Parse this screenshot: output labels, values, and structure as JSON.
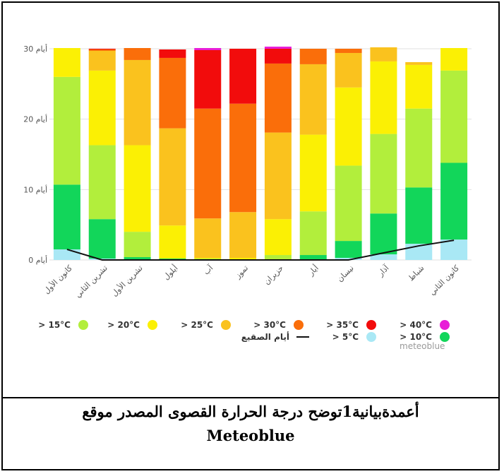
{
  "chart_data": {
    "type": "bar",
    "stacked": true,
    "source_label": "meteoblue",
    "ylim": [
      0,
      30
    ],
    "y_ticks": [
      0,
      10,
      20,
      30
    ],
    "y_tick_labels": [
      "0 أيام",
      "10 أيام",
      "20 أيام",
      "30 أيام"
    ],
    "categories": [
      "كانون الأول",
      "تشرين الثاني",
      "تشرين الأول",
      "أيلول",
      "آب",
      "تموز",
      "حزيران",
      "أيار",
      "نيسان",
      "آذار",
      "شباط",
      "كانون الثاني"
    ],
    "series": [
      {
        "name": "> 5°C",
        "color": "#a9e8f5",
        "values": [
          1.5,
          0.2,
          0.1,
          0.0,
          0.0,
          0.0,
          0.0,
          0.0,
          0.3,
          0.8,
          2.3,
          2.9
        ]
      },
      {
        "name": "> 10°C",
        "color": "#12d65a",
        "values": [
          9.2,
          5.6,
          0.3,
          0.2,
          0.1,
          0.0,
          0.0,
          0.7,
          2.4,
          5.8,
          8.0,
          10.9
        ]
      },
      {
        "name": "> 15°C",
        "color": "#b2ee3c",
        "values": [
          15.3,
          10.5,
          3.6,
          0.0,
          0.1,
          0.1,
          0.7,
          6.2,
          10.7,
          11.3,
          11.2,
          13.1
        ]
      },
      {
        "name": "> 20°C",
        "color": "#fbf004",
        "values": [
          4.1,
          10.6,
          12.3,
          4.7,
          0.1,
          0.2,
          5.1,
          10.9,
          11.1,
          10.3,
          6.2,
          3.2
        ]
      },
      {
        "name": "> 25°C",
        "color": "#fac21e",
        "values": [
          0.0,
          2.8,
          12.1,
          13.8,
          5.6,
          6.5,
          12.3,
          10.0,
          4.9,
          2.0,
          0.4,
          0.0
        ]
      },
      {
        "name": "> 30°C",
        "color": "#fa6e0a",
        "values": [
          0.0,
          0.2,
          1.7,
          10.0,
          15.6,
          15.4,
          9.8,
          2.2,
          0.6,
          0.0,
          0.0,
          0.0
        ]
      },
      {
        "name": "> 35°C",
        "color": "#f20c0c",
        "values": [
          0.0,
          0.1,
          0.0,
          1.2,
          8.3,
          7.8,
          2.1,
          0.0,
          0.0,
          0.0,
          0.0,
          0.0
        ]
      },
      {
        "name": "> 40°C",
        "color": "#e81ed7",
        "values": [
          0.0,
          0.0,
          0.0,
          0.0,
          0.3,
          0.0,
          0.3,
          0.0,
          0.0,
          0.0,
          0.0,
          0.0
        ]
      }
    ],
    "frost_line": {
      "name": "أيام الصقيع",
      "color": "#111111",
      "values": [
        1.5,
        0.0,
        0.0,
        0.0,
        0.0,
        0.0,
        0.0,
        0.0,
        0.0,
        1.0,
        2.0,
        2.8
      ]
    },
    "legend_rows": [
      [
        "> 15°C",
        "> 20°C",
        "> 25°C",
        "> 30°C",
        "> 35°C",
        "> 40°C"
      ],
      [
        "أيام الصقيع",
        "> 5°C",
        "> 10°C"
      ]
    ],
    "grid": true,
    "legend_position": "bottom"
  },
  "caption": {
    "line1": "أعمدةبيانية1توضح درجة الحرارة القصوى المصدر موقع",
    "line2": "Meteoblue"
  }
}
